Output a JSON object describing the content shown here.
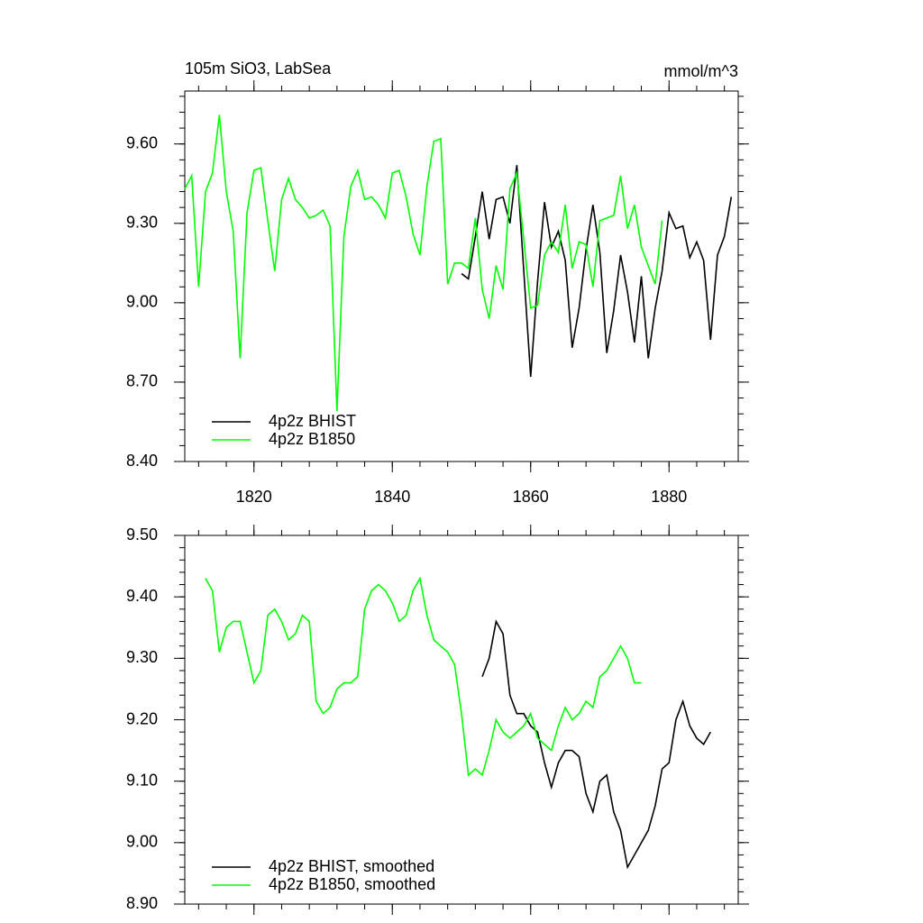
{
  "chart_data": [
    {
      "type": "line",
      "title": "105m SiO3, LabSea",
      "units": "mmol/m^3",
      "x": [
        1810,
        1811,
        1812,
        1813,
        1814,
        1815,
        1816,
        1817,
        1818,
        1819,
        1820,
        1821,
        1822,
        1823,
        1824,
        1825,
        1826,
        1827,
        1828,
        1829,
        1830,
        1831,
        1832,
        1833,
        1834,
        1835,
        1836,
        1837,
        1838,
        1839,
        1840,
        1841,
        1842,
        1843,
        1844,
        1845,
        1846,
        1847,
        1848,
        1849,
        1850,
        1851,
        1852,
        1853,
        1854,
        1855,
        1856,
        1857,
        1858,
        1859,
        1860,
        1861,
        1862,
        1863,
        1864,
        1865,
        1866,
        1867,
        1868,
        1869,
        1870,
        1871,
        1872,
        1873,
        1874,
        1875,
        1876,
        1877,
        1878,
        1879,
        1880,
        1881,
        1882,
        1883,
        1884,
        1885,
        1886,
        1887,
        1888,
        1889
      ],
      "series": [
        {
          "name": "4p2z BHIST",
          "color": "#000000",
          "values": [
            null,
            null,
            null,
            null,
            null,
            null,
            null,
            null,
            null,
            null,
            null,
            null,
            null,
            null,
            null,
            null,
            null,
            null,
            null,
            null,
            null,
            null,
            null,
            null,
            null,
            null,
            null,
            null,
            null,
            null,
            null,
            null,
            null,
            null,
            null,
            null,
            null,
            null,
            null,
            null,
            9.11,
            9.09,
            9.25,
            9.42,
            9.24,
            9.39,
            9.4,
            9.3,
            9.52,
            9.12,
            8.72,
            9.08,
            9.38,
            9.21,
            9.27,
            9.16,
            8.83,
            8.98,
            9.2,
            9.37,
            9.19,
            8.81,
            8.97,
            9.18,
            9.04,
            8.85,
            9.1,
            8.79,
            8.98,
            9.12,
            9.34,
            9.28,
            9.29,
            9.17,
            9.23,
            9.16,
            8.86,
            9.18,
            9.25,
            9.4
          ]
        },
        {
          "name": "4p2z B1850",
          "color": "#00ff00",
          "values": [
            9.43,
            9.48,
            9.06,
            9.42,
            9.49,
            9.71,
            9.42,
            9.27,
            8.79,
            9.34,
            9.5,
            9.51,
            9.31,
            9.12,
            9.39,
            9.47,
            9.39,
            9.36,
            9.32,
            9.33,
            9.35,
            9.29,
            8.59,
            9.25,
            9.44,
            9.5,
            9.39,
            9.4,
            9.37,
            9.32,
            9.49,
            9.5,
            9.4,
            9.26,
            9.18,
            9.44,
            9.61,
            9.62,
            9.07,
            9.15,
            9.15,
            9.13,
            9.32,
            9.05,
            8.94,
            9.14,
            9.05,
            9.43,
            9.49,
            9.24,
            8.98,
            8.99,
            9.18,
            9.23,
            9.19,
            9.37,
            9.13,
            9.23,
            9.22,
            9.06,
            9.31,
            9.32,
            9.33,
            9.48,
            9.28,
            9.37,
            9.21,
            9.14,
            9.07,
            9.31,
            null,
            null,
            null,
            null,
            null,
            null,
            null,
            null,
            null,
            null
          ]
        }
      ],
      "xlim": [
        1810,
        1890
      ],
      "xticks": [
        1820,
        1840,
        1860,
        1880
      ],
      "ylim": [
        8.4,
        9.8
      ],
      "yticks": [
        {
          "value": 8.4,
          "label": "8.40"
        },
        {
          "value": 8.7,
          "label": "8.70"
        },
        {
          "value": 9.0,
          "label": "9.00"
        },
        {
          "value": 9.3,
          "label": "9.30"
        },
        {
          "value": 9.6,
          "label": "9.60"
        }
      ]
    },
    {
      "type": "line",
      "x": [
        1810,
        1811,
        1812,
        1813,
        1814,
        1815,
        1816,
        1817,
        1818,
        1819,
        1820,
        1821,
        1822,
        1823,
        1824,
        1825,
        1826,
        1827,
        1828,
        1829,
        1830,
        1831,
        1832,
        1833,
        1834,
        1835,
        1836,
        1837,
        1838,
        1839,
        1840,
        1841,
        1842,
        1843,
        1844,
        1845,
        1846,
        1847,
        1848,
        1849,
        1850,
        1851,
        1852,
        1853,
        1854,
        1855,
        1856,
        1857,
        1858,
        1859,
        1860,
        1861,
        1862,
        1863,
        1864,
        1865,
        1866,
        1867,
        1868,
        1869,
        1870,
        1871,
        1872,
        1873,
        1874,
        1875,
        1876,
        1877,
        1878,
        1879,
        1880,
        1881,
        1882,
        1883,
        1884,
        1885,
        1886,
        1887,
        1888,
        1889
      ],
      "series": [
        {
          "name": "4p2z BHIST, smoothed",
          "color": "#000000",
          "values": [
            null,
            null,
            null,
            null,
            null,
            null,
            null,
            null,
            null,
            null,
            null,
            null,
            null,
            null,
            null,
            null,
            null,
            null,
            null,
            null,
            null,
            null,
            null,
            null,
            null,
            null,
            null,
            null,
            null,
            null,
            null,
            null,
            null,
            null,
            null,
            null,
            null,
            null,
            null,
            null,
            null,
            null,
            null,
            9.27,
            9.3,
            9.36,
            9.34,
            9.24,
            9.21,
            9.21,
            9.19,
            9.18,
            9.13,
            9.09,
            9.13,
            9.15,
            9.15,
            9.14,
            9.08,
            9.05,
            9.1,
            9.11,
            9.05,
            9.02,
            8.96,
            8.98,
            9.0,
            9.02,
            9.06,
            9.12,
            9.13,
            9.2,
            9.23,
            9.19,
            9.17,
            9.16,
            9.18,
            null,
            null,
            null
          ]
        },
        {
          "name": "4p2z B1850, smoothed",
          "color": "#00ff00",
          "values": [
            null,
            null,
            null,
            9.43,
            9.41,
            9.31,
            9.35,
            9.36,
            9.36,
            9.31,
            9.26,
            9.28,
            9.37,
            9.38,
            9.36,
            9.33,
            9.34,
            9.37,
            9.36,
            9.23,
            9.21,
            9.22,
            9.25,
            9.26,
            9.26,
            9.27,
            9.38,
            9.41,
            9.42,
            9.41,
            9.39,
            9.36,
            9.37,
            9.41,
            9.43,
            9.37,
            9.33,
            9.32,
            9.31,
            9.29,
            9.21,
            9.11,
            9.12,
            9.11,
            9.15,
            9.2,
            9.18,
            9.17,
            9.18,
            9.19,
            9.21,
            9.17,
            9.16,
            9.15,
            9.19,
            9.22,
            9.2,
            9.21,
            9.23,
            9.22,
            9.27,
            9.28,
            9.3,
            9.32,
            9.3,
            9.26,
            9.26,
            null,
            null,
            null,
            null,
            null,
            null,
            null,
            null,
            null,
            null,
            null,
            null,
            null
          ]
        }
      ],
      "xlim": [
        1810,
        1890
      ],
      "ylim": [
        8.9,
        9.5
      ],
      "yticks": [
        {
          "value": 8.9,
          "label": "8.90"
        },
        {
          "value": 9.0,
          "label": "9.00"
        },
        {
          "value": 9.1,
          "label": "9.10"
        },
        {
          "value": 9.2,
          "label": "9.20"
        },
        {
          "value": 9.3,
          "label": "9.30"
        },
        {
          "value": 9.4,
          "label": "9.40"
        },
        {
          "value": 9.5,
          "label": "9.50"
        }
      ]
    }
  ]
}
